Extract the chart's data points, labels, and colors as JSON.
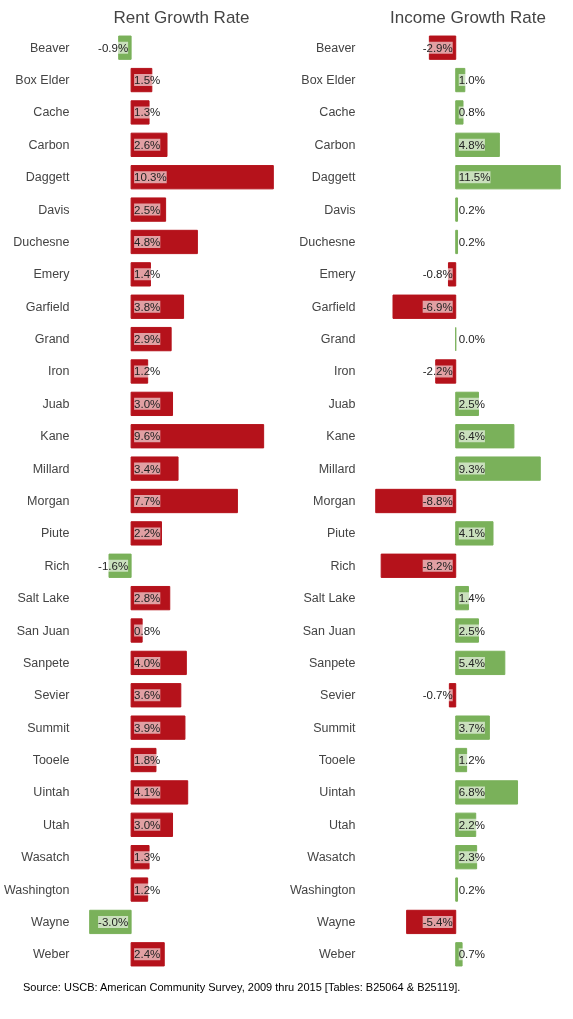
{
  "chart_data": [
    {
      "type": "bar",
      "orientation": "horizontal",
      "title": "Rent Growth Rate",
      "tick_labels": "y",
      "categories": [
        "Beaver",
        "Box Elder",
        "Cache",
        "Carbon",
        "Daggett",
        "Davis",
        "Duchesne",
        "Emery",
        "Garfield",
        "Grand",
        "Iron",
        "Juab",
        "Kane",
        "Millard",
        "Morgan",
        "Piute",
        "Rich",
        "Salt Lake",
        "San Juan",
        "Sanpete",
        "Sevier",
        "Summit",
        "Tooele",
        "Uintah",
        "Utah",
        "Wasatch",
        "Washington",
        "Wayne",
        "Weber"
      ],
      "values": [
        -0.9,
        1.5,
        1.3,
        2.6,
        10.3,
        2.5,
        4.8,
        1.4,
        3.8,
        2.9,
        1.2,
        3.0,
        9.6,
        3.4,
        7.7,
        2.2,
        -1.6,
        2.8,
        0.8,
        4.0,
        3.6,
        3.9,
        1.8,
        4.1,
        3.0,
        1.3,
        1.2,
        -3.0,
        2.4
      ],
      "value_labels": [
        "-0.9%",
        "1.5%",
        "1.3%",
        "2.6%",
        "10.3%",
        "2.5%",
        "4.8%",
        "1.4%",
        "3.8%",
        "2.9%",
        "1.2%",
        "3.0%",
        "9.6%",
        "3.4%",
        "7.7%",
        "2.2%",
        "-1.6%",
        "2.8%",
        "0.8%",
        "4.0%",
        "3.6%",
        "3.9%",
        "1.8%",
        "4.1%",
        "3.0%",
        "1.3%",
        "1.2%",
        "-3.0%",
        "2.4%"
      ],
      "colors": [
        "#7ab15a",
        "#b5121b",
        "#b5121b",
        "#b5121b",
        "#b5121b",
        "#b5121b",
        "#b5121b",
        "#b5121b",
        "#b5121b",
        "#b5121b",
        "#b5121b",
        "#b5121b",
        "#b5121b",
        "#b5121b",
        "#b5121b",
        "#b5121b",
        "#7ab15a",
        "#b5121b",
        "#b5121b",
        "#b5121b",
        "#b5121b",
        "#b5121b",
        "#b5121b",
        "#b5121b",
        "#b5121b",
        "#b5121b",
        "#b5121b",
        "#7ab15a",
        "#b5121b"
      ],
      "annotations": [
        "Source:  USCB:  American Community Survey, 2009 thru 2015 [Tables: B25064 & B25119]."
      ]
    },
    {
      "type": "bar",
      "orientation": "horizontal",
      "title": "Income Growth Rate",
      "tick_labels": "y",
      "categories": [
        "Beaver",
        "Box Elder",
        "Cache",
        "Carbon",
        "Daggett",
        "Davis",
        "Duchesne",
        "Emery",
        "Garfield",
        "Grand",
        "Iron",
        "Juab",
        "Kane",
        "Millard",
        "Morgan",
        "Piute",
        "Rich",
        "Salt Lake",
        "San Juan",
        "Sanpete",
        "Sevier",
        "Summit",
        "Tooele",
        "Uintah",
        "Utah",
        "Wasatch",
        "Washington",
        "Wayne",
        "Weber"
      ],
      "values": [
        -2.9,
        1.0,
        0.8,
        4.8,
        11.5,
        0.2,
        0.2,
        -0.8,
        -6.9,
        0.0,
        -2.2,
        2.5,
        6.4,
        9.3,
        -8.8,
        4.1,
        -8.2,
        1.4,
        2.5,
        5.4,
        -0.7,
        3.7,
        1.2,
        6.8,
        2.2,
        2.3,
        0.2,
        -5.4,
        0.7
      ],
      "value_labels": [
        "-2.9%",
        "1.0%",
        "0.8%",
        "4.8%",
        "11.5%",
        "0.2%",
        "0.2%",
        "-0.8%",
        "-6.9%",
        "0.0%",
        "-2.2%",
        "2.5%",
        "6.4%",
        "9.3%",
        "-8.8%",
        "4.1%",
        "-8.2%",
        "1.4%",
        "2.5%",
        "5.4%",
        "-0.7%",
        "3.7%",
        "1.2%",
        "6.8%",
        "2.2%",
        "2.3%",
        "0.2%",
        "-5.4%",
        "0.7%"
      ],
      "colors": [
        "#b5121b",
        "#7ab15a",
        "#7ab15a",
        "#7ab15a",
        "#7ab15a",
        "#7ab15a",
        "#7ab15a",
        "#b5121b",
        "#b5121b",
        "#7ab15a",
        "#b5121b",
        "#7ab15a",
        "#7ab15a",
        "#7ab15a",
        "#b5121b",
        "#7ab15a",
        "#b5121b",
        "#7ab15a",
        "#7ab15a",
        "#7ab15a",
        "#b5121b",
        "#7ab15a",
        "#7ab15a",
        "#7ab15a",
        "#7ab15a",
        "#7ab15a",
        "#7ab15a",
        "#b5121b",
        "#7ab15a"
      ]
    }
  ]
}
